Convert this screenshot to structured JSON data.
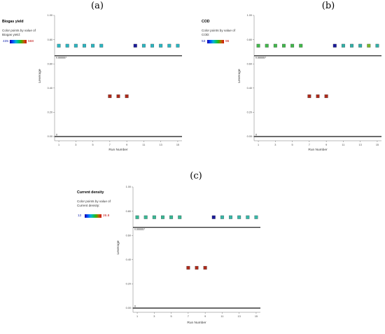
{
  "chart_data": [
    {
      "type": "scatter",
      "panel": "(a)",
      "title": "Biogas yield",
      "legend_caption": "Color points by value of",
      "legend_variable": "Biogas yield:",
      "color_min": "435",
      "color_max": "568",
      "xlabel": "Run Number",
      "ylabel": "Leverage",
      "x_ticks": [
        "1",
        "3",
        "5",
        "7",
        "9",
        "11",
        "13",
        "15"
      ],
      "y_ticks": [
        "0.00",
        "0.20",
        "0.40",
        "0.60",
        "0.80",
        "1.00"
      ],
      "ylim": [
        0,
        1.0
      ],
      "xlim": [
        0.5,
        15.5
      ],
      "threshold_label": "0.666667",
      "threshold": 0.666667,
      "zero_label": "0",
      "x": [
        1,
        2,
        3,
        4,
        5,
        6,
        7,
        8,
        9,
        10,
        11,
        12,
        13,
        14,
        15
      ],
      "y": [
        0.75,
        0.75,
        0.75,
        0.75,
        0.75,
        0.75,
        0.333,
        0.333,
        0.333,
        0.75,
        0.75,
        0.75,
        0.75,
        0.75,
        0.75
      ],
      "point_colors": [
        "#2ab6c2",
        "#2ab6c2",
        "#2ab6c2",
        "#2ab6c2",
        "#2ab6c2",
        "#2ab6c2",
        "#b02a1a",
        "#b02a1a",
        "#b02a1a",
        "#1a1a9a",
        "#2ab6c2",
        "#2ab6c2",
        "#2ab6c2",
        "#2ab6c2",
        "#2ab6c2"
      ]
    },
    {
      "type": "scatter",
      "panel": "(b)",
      "title": "COD",
      "legend_caption": "Color points by value of",
      "legend_variable": "COD:",
      "color_min": "53",
      "color_max": "96",
      "xlabel": "Run Number",
      "ylabel": "Leverage",
      "x_ticks": [
        "1",
        "3",
        "5",
        "7",
        "9",
        "11",
        "13",
        "15"
      ],
      "y_ticks": [
        "0.00",
        "0.20",
        "0.40",
        "0.60",
        "0.80",
        "1.00"
      ],
      "ylim": [
        0,
        1.0
      ],
      "xlim": [
        0.5,
        15.5
      ],
      "threshold_label": "0.666667",
      "threshold": 0.666667,
      "zero_label": "0",
      "x": [
        1,
        2,
        3,
        4,
        5,
        6,
        7,
        8,
        9,
        10,
        11,
        12,
        13,
        14,
        15
      ],
      "y": [
        0.75,
        0.75,
        0.75,
        0.75,
        0.75,
        0.75,
        0.333,
        0.333,
        0.333,
        0.75,
        0.75,
        0.75,
        0.75,
        0.75,
        0.75
      ],
      "point_colors": [
        "#40b84a",
        "#40b84a",
        "#40b84a",
        "#40b84a",
        "#40b84a",
        "#40b84a",
        "#b02a1a",
        "#b02a1a",
        "#b02a1a",
        "#1a1a9a",
        "#30b0a8",
        "#30b0a8",
        "#30b0a8",
        "#7ab82a",
        "#30b0a8"
      ]
    },
    {
      "type": "scatter",
      "panel": "(c)",
      "title": "Current density",
      "legend_caption": "Color points by value of",
      "legend_variable": "Current density:",
      "color_min": "12",
      "color_max": "26.8",
      "xlabel": "Run Number",
      "ylabel": "Leverage",
      "x_ticks": [
        "1",
        "3",
        "5",
        "7",
        "9",
        "11",
        "13",
        "15"
      ],
      "y_ticks": [
        "0.00",
        "0.20",
        "0.40",
        "0.60",
        "0.80",
        "1.00"
      ],
      "ylim": [
        0,
        1.0
      ],
      "xlim": [
        0.5,
        15.5
      ],
      "threshold_label": "0.666667",
      "threshold": 0.666667,
      "zero_label": "0",
      "x": [
        1,
        2,
        3,
        4,
        5,
        6,
        7,
        8,
        9,
        10,
        11,
        12,
        13,
        14,
        15
      ],
      "y": [
        0.75,
        0.75,
        0.75,
        0.75,
        0.75,
        0.75,
        0.333,
        0.333,
        0.333,
        0.75,
        0.75,
        0.75,
        0.75,
        0.75,
        0.75
      ],
      "point_colors": [
        "#36b894",
        "#36b894",
        "#36b894",
        "#36b894",
        "#36b894",
        "#36b894",
        "#b02a1a",
        "#b02a1a",
        "#b02a1a",
        "#1a1a9a",
        "#36b8a8",
        "#36b8a8",
        "#36b8a8",
        "#36b8a8",
        "#36b8a8"
      ]
    }
  ]
}
